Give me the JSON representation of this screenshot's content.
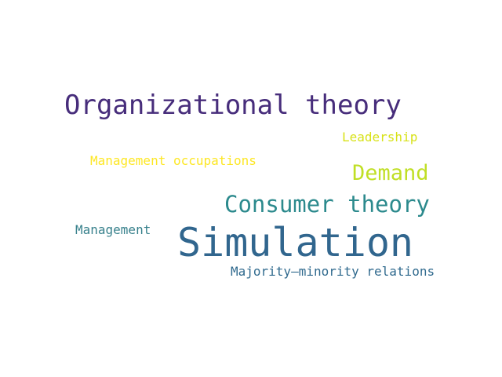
{
  "words": [
    {
      "text": "Organizational theory",
      "color": "#472d7b"
    },
    {
      "text": "Leadership",
      "color": "#d8e219"
    },
    {
      "text": "Management occupations",
      "color": "#fde725"
    },
    {
      "text": "Demand",
      "color": "#c0df25"
    },
    {
      "text": "Consumer theory",
      "color": "#2c8a8d"
    },
    {
      "text": "Management",
      "color": "#38818c"
    },
    {
      "text": "Simulation",
      "color": "#31668e"
    },
    {
      "text": "Majority–minority relations",
      "color": "#306a8e"
    }
  ]
}
